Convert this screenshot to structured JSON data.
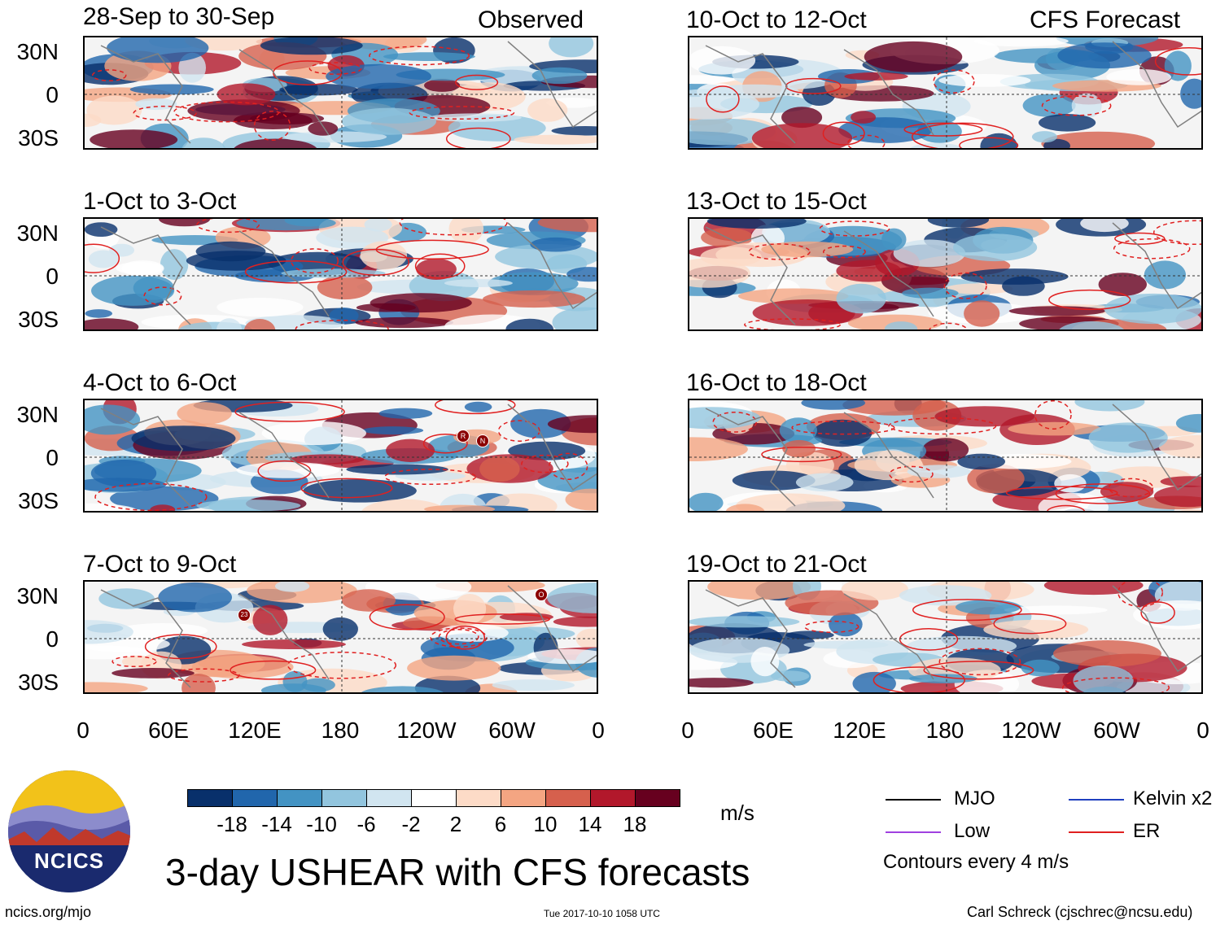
{
  "headers": {
    "observed": "Observed",
    "forecast": "CFS Forecast"
  },
  "observed_panels": [
    {
      "title": "28-Sep to 30-Sep"
    },
    {
      "title": "1-Oct to 3-Oct"
    },
    {
      "title": "4-Oct to 6-Oct"
    },
    {
      "title": "7-Oct to 9-Oct"
    }
  ],
  "forecast_panels": [
    {
      "title": "10-Oct to 12-Oct"
    },
    {
      "title": "13-Oct to 15-Oct"
    },
    {
      "title": "16-Oct to 18-Oct"
    },
    {
      "title": "19-Oct to 21-Oct"
    }
  ],
  "lat_labels": [
    "30N",
    "0",
    "30S"
  ],
  "lon_labels": [
    "0",
    "60E",
    "120E",
    "180",
    "120W",
    "60W",
    "0"
  ],
  "storm_markers": [
    {
      "panel": 2,
      "label": "R"
    },
    {
      "panel": 2,
      "label": "N"
    },
    {
      "panel": 3,
      "label": "23"
    },
    {
      "panel": 3,
      "label": "O"
    }
  ],
  "colorbar": {
    "colors": [
      "#08306b",
      "#2166ac",
      "#4393c3",
      "#92c5de",
      "#d1e5f0",
      "#ffffff",
      "#fddbc7",
      "#f4a582",
      "#d6604d",
      "#b2182b",
      "#67001f"
    ],
    "labels": [
      "-18",
      "-14",
      "-10",
      "-6",
      "-2",
      "2",
      "6",
      "10",
      "14",
      "18"
    ],
    "units": "m/s"
  },
  "legend": {
    "mjo": "MJO",
    "kelvin": "Kelvin x2",
    "low": "Low",
    "er": "ER",
    "mjo_color": "#000000",
    "kelvin_color": "#1f3fbf",
    "low_color": "#a040e0",
    "er_color": "#e02020",
    "contours": "Contours every 4 m/s"
  },
  "logo": {
    "text": "NCICS"
  },
  "title": "3-day USHEAR with CFS forecasts",
  "footer": {
    "url": "ncics.org/mjo",
    "timestamp": "Tue 2017-10-10 1058 UTC",
    "credit": "Carl Schreck (cjschrec@ncsu.edu)"
  }
}
